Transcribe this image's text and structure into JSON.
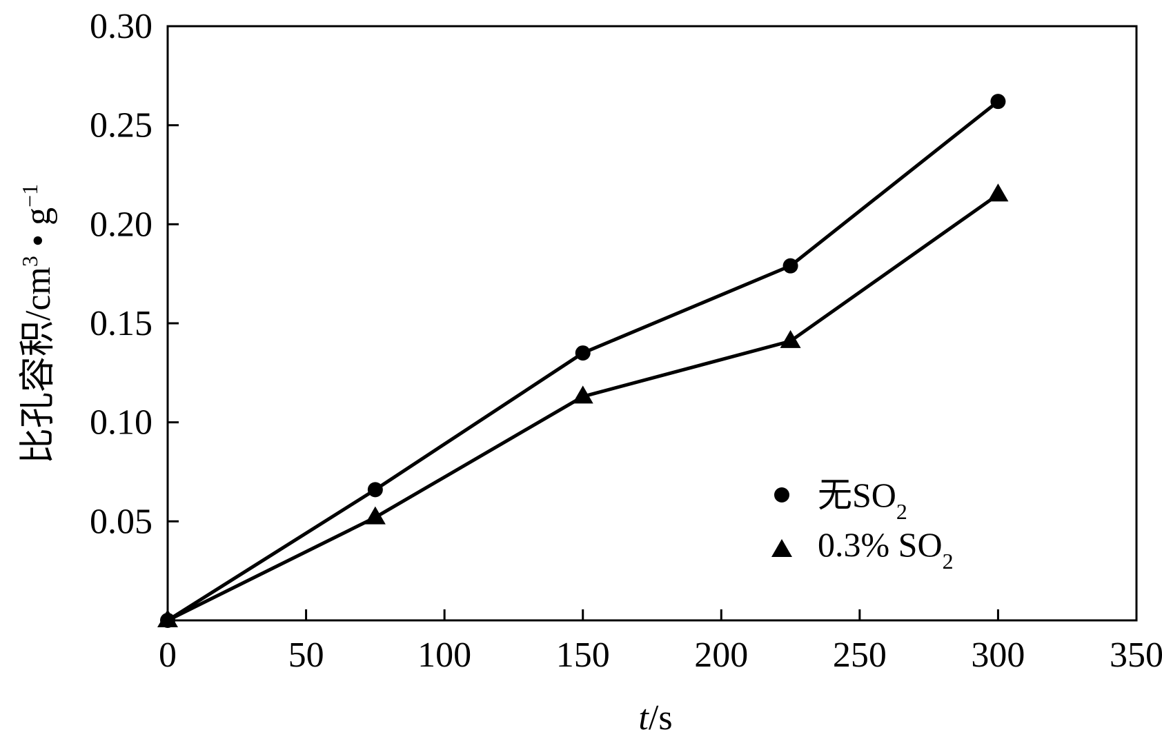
{
  "chart_data": {
    "type": "line",
    "title": "",
    "xlabel": {
      "italic": "t",
      "rest": "/s"
    },
    "ylabel": {
      "main": "比孔容积/cm",
      "sup1": "3",
      "mid": " • g",
      "sup2": "−1"
    },
    "xlim": [
      0,
      350
    ],
    "ylim": [
      0,
      0.3
    ],
    "xticks": [
      0,
      50,
      100,
      150,
      200,
      250,
      300,
      350
    ],
    "xtick_labels": [
      "0",
      "50",
      "100",
      "150",
      "200",
      "250",
      "300",
      "350"
    ],
    "yticks": [
      0.05,
      0.1,
      0.15,
      0.2,
      0.25,
      0.3
    ],
    "ytick_labels": [
      "0.05",
      "0.10",
      "0.15",
      "0.20",
      "0.25",
      "0.30"
    ],
    "grid": false,
    "legend_position": "lower-right",
    "series": [
      {
        "name": {
          "prefix": "无SO",
          "sub": "2"
        },
        "marker": "circle",
        "color": "#000000",
        "x": [
          0,
          75,
          150,
          225,
          300
        ],
        "y": [
          0,
          0.066,
          0.135,
          0.179,
          0.262
        ]
      },
      {
        "name": {
          "prefix": "0.3% SO",
          "sub": "2"
        },
        "marker": "triangle",
        "color": "#000000",
        "x": [
          0,
          75,
          150,
          225,
          300
        ],
        "y": [
          0,
          0.052,
          0.113,
          0.141,
          0.215
        ]
      }
    ]
  }
}
